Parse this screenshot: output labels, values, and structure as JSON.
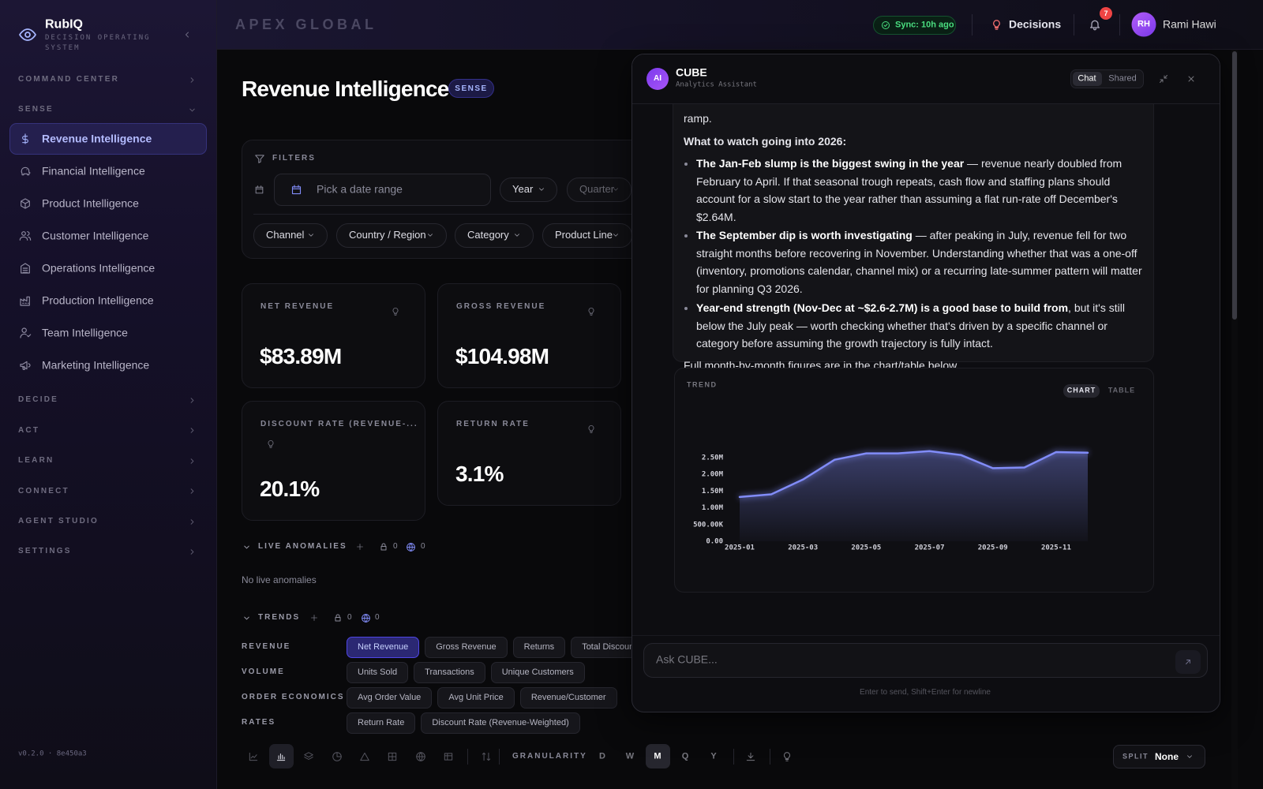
{
  "sidebar": {
    "brand": "RubIQ",
    "tagline": "DECISION OPERATING SYSTEM",
    "sections": [
      {
        "label": "COMMAND CENTER"
      },
      {
        "label": "SENSE",
        "items": [
          "Revenue Intelligence",
          "Financial Intelligence",
          "Product Intelligence",
          "Customer Intelligence",
          "Operations Intelligence",
          "Production Intelligence",
          "Team Intelligence",
          "Marketing Intelligence"
        ]
      },
      {
        "label": "DECIDE"
      },
      {
        "label": "ACT"
      },
      {
        "label": "LEARN"
      },
      {
        "label": "CONNECT"
      },
      {
        "label": "AGENT STUDIO"
      },
      {
        "label": "SETTINGS"
      }
    ],
    "version": "v0.2.0 · 8e450a3"
  },
  "header": {
    "org": "APEX GLOBAL",
    "sync": "Sync: 10h ago",
    "decisions": "Decisions",
    "notifications": 7,
    "initials": "RH",
    "user": "Rami Hawi"
  },
  "page": {
    "title": "Revenue Intelligence",
    "badge": "SENSE",
    "filters": {
      "label": "FILTERS",
      "date_placeholder": "Pick a date range",
      "period": [
        "Year",
        "Quarter"
      ],
      "dimensions": [
        "Channel",
        "Country / Region",
        "Category",
        "Product Line"
      ]
    },
    "kpis": [
      {
        "label": "NET REVENUE",
        "value": "$83.89M"
      },
      {
        "label": "GROSS REVENUE",
        "value": "$104.98M"
      },
      {
        "label": "DISCOUNT RATE (REVENUE-...",
        "value": "20.1%"
      },
      {
        "label": "RETURN RATE",
        "value": "3.1%"
      }
    ],
    "anomalies": {
      "title": "LIVE ANOMALIES",
      "private": 0,
      "shared": 0,
      "empty": "No live anomalies"
    },
    "trends": {
      "title": "TRENDS",
      "private": 0,
      "shared": 0,
      "groups": [
        {
          "label": "REVENUE",
          "metrics": [
            "Net Revenue",
            "Gross Revenue",
            "Returns",
            "Total Discounts"
          ]
        },
        {
          "label": "VOLUME",
          "metrics": [
            "Units Sold",
            "Transactions",
            "Unique Customers"
          ]
        },
        {
          "label": "ORDER ECONOMICS",
          "metrics": [
            "Avg Order Value",
            "Avg Unit Price",
            "Revenue/Customer"
          ]
        },
        {
          "label": "RATES",
          "metrics": [
            "Return Rate",
            "Discount Rate (Revenue-Weighted)"
          ]
        }
      ]
    },
    "toolbar": {
      "granularity_label": "GRANULARITY",
      "granularity": [
        "D",
        "W",
        "M",
        "Q",
        "Y"
      ],
      "split_label": "SPLIT",
      "split": "None"
    }
  },
  "chat": {
    "name": "CUBE",
    "subtitle": "Analytics Assistant",
    "avatar": "AI",
    "tabs": [
      "Chat",
      "Shared"
    ],
    "message": {
      "lead": "ramp.",
      "heading": "What to watch going into 2026:",
      "bullets": [
        {
          "bold": "The Jan-Feb slump is the biggest swing in the year",
          "text": " — revenue nearly doubled from February to April. If that seasonal trough repeats, cash flow and staffing plans should account for a slow start to the year rather than assuming a flat run-rate off December's $2.64M."
        },
        {
          "bold": "The September dip is worth investigating",
          "text": " — after peaking in July, revenue fell for two straight months before recovering in November. Understanding whether that was a one-off (inventory, promotions calendar, channel mix) or a recurring late-summer pattern will matter for planning Q3 2026."
        },
        {
          "bold": "Year-end strength (Nov-Dec at ~$2.6-2.7M) is a good base to build from",
          "text": ", but it's still below the July peak — worth checking whether that's driven by a specific channel or category before assuming the growth trajectory is fully intact."
        }
      ],
      "closing": "Full month-by-month figures are in the chart/table below."
    },
    "chart_card": {
      "label": "TREND",
      "views": [
        "CHART",
        "TABLE"
      ]
    },
    "input_placeholder": "Ask CUBE...",
    "hint": "Enter to send, Shift+Enter for newline"
  },
  "chart_data": {
    "type": "area",
    "categories": [
      "2025-01",
      null,
      "2025-03",
      null,
      "2025-05",
      null,
      "2025-07",
      null,
      "2025-09",
      null,
      "2025-11",
      null
    ],
    "values": [
      1320000,
      1400000,
      1840000,
      2430000,
      2620000,
      2620000,
      2690000,
      2570000,
      2180000,
      2200000,
      2660000,
      2640000
    ],
    "color": "#818cf8",
    "ylim": [
      0,
      2800000
    ],
    "yticks": [
      {
        "value": 0,
        "label": "0.00"
      },
      {
        "value": 500000,
        "label": "500.00K"
      },
      {
        "value": 1000000,
        "label": "1.00M"
      },
      {
        "value": 1500000,
        "label": "1.50M"
      },
      {
        "value": 2000000,
        "label": "2.00M"
      },
      {
        "value": 2500000,
        "label": "2.50M"
      }
    ],
    "grid": false
  }
}
